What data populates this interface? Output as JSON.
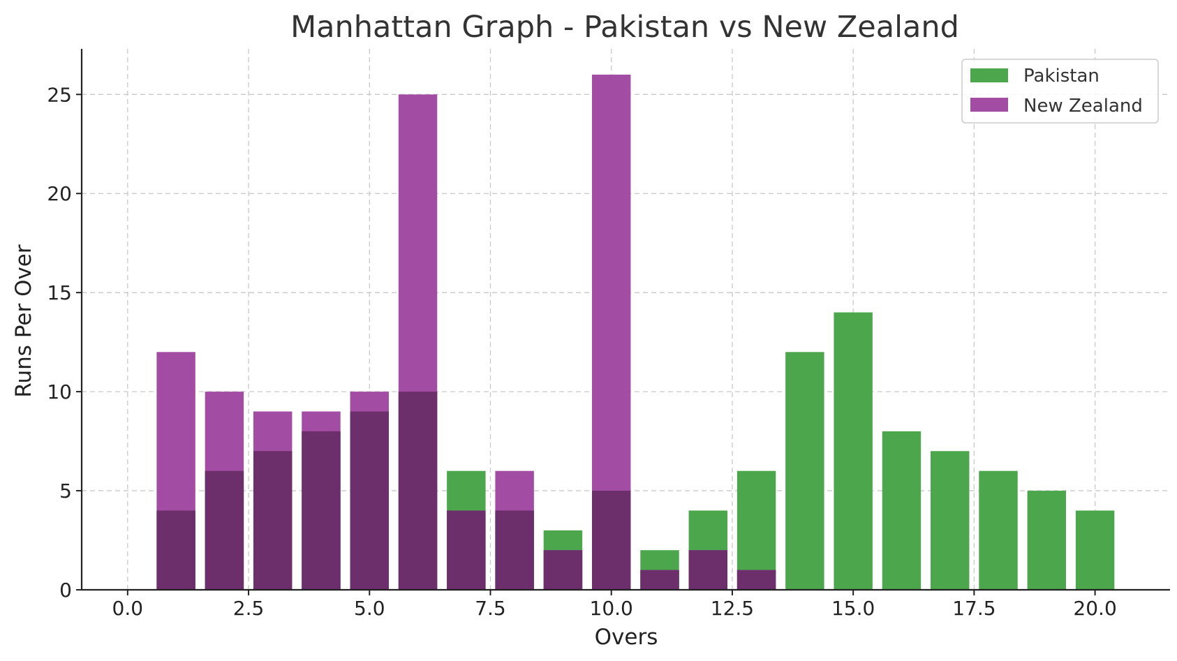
{
  "chart_data": {
    "type": "bar",
    "title": "Manhattan Graph - Pakistan vs New Zealand",
    "xlabel": "Overs",
    "ylabel": "Runs Per Over",
    "xlim": [
      -0.95,
      21.55
    ],
    "ylim": [
      0,
      27.3
    ],
    "xticks": [
      0.0,
      2.5,
      5.0,
      7.5,
      10.0,
      12.5,
      15.0,
      17.5,
      20.0
    ],
    "xtick_labels": [
      "0.0",
      "2.5",
      "5.0",
      "7.5",
      "10.0",
      "12.5",
      "15.0",
      "17.5",
      "20.0"
    ],
    "yticks": [
      0,
      5,
      10,
      15,
      20,
      25
    ],
    "ytick_labels": [
      "0",
      "5",
      "10",
      "15",
      "20",
      "25"
    ],
    "grid": true,
    "legend_position": "top-right",
    "bar_width": 0.8,
    "series": [
      {
        "name": "Pakistan",
        "color": "#4ca64c",
        "x": [
          1,
          2,
          3,
          4,
          5,
          6,
          7,
          8,
          9,
          10,
          11,
          12,
          13,
          14,
          15,
          16,
          17,
          18,
          19,
          20
        ],
        "values": [
          4,
          6,
          7,
          8,
          9,
          10,
          6,
          4,
          3,
          5,
          2,
          4,
          6,
          12,
          14,
          8,
          7,
          6,
          5,
          4
        ]
      },
      {
        "name": "New Zealand",
        "color": "#a34ca3",
        "x": [
          1,
          2,
          3,
          4,
          5,
          6,
          7,
          8,
          9,
          10,
          11,
          12,
          13
        ],
        "values": [
          12,
          10,
          9,
          9,
          10,
          25,
          4,
          6,
          2,
          26,
          1,
          2,
          1
        ]
      }
    ],
    "overlap_color": "#6c2f6c"
  }
}
